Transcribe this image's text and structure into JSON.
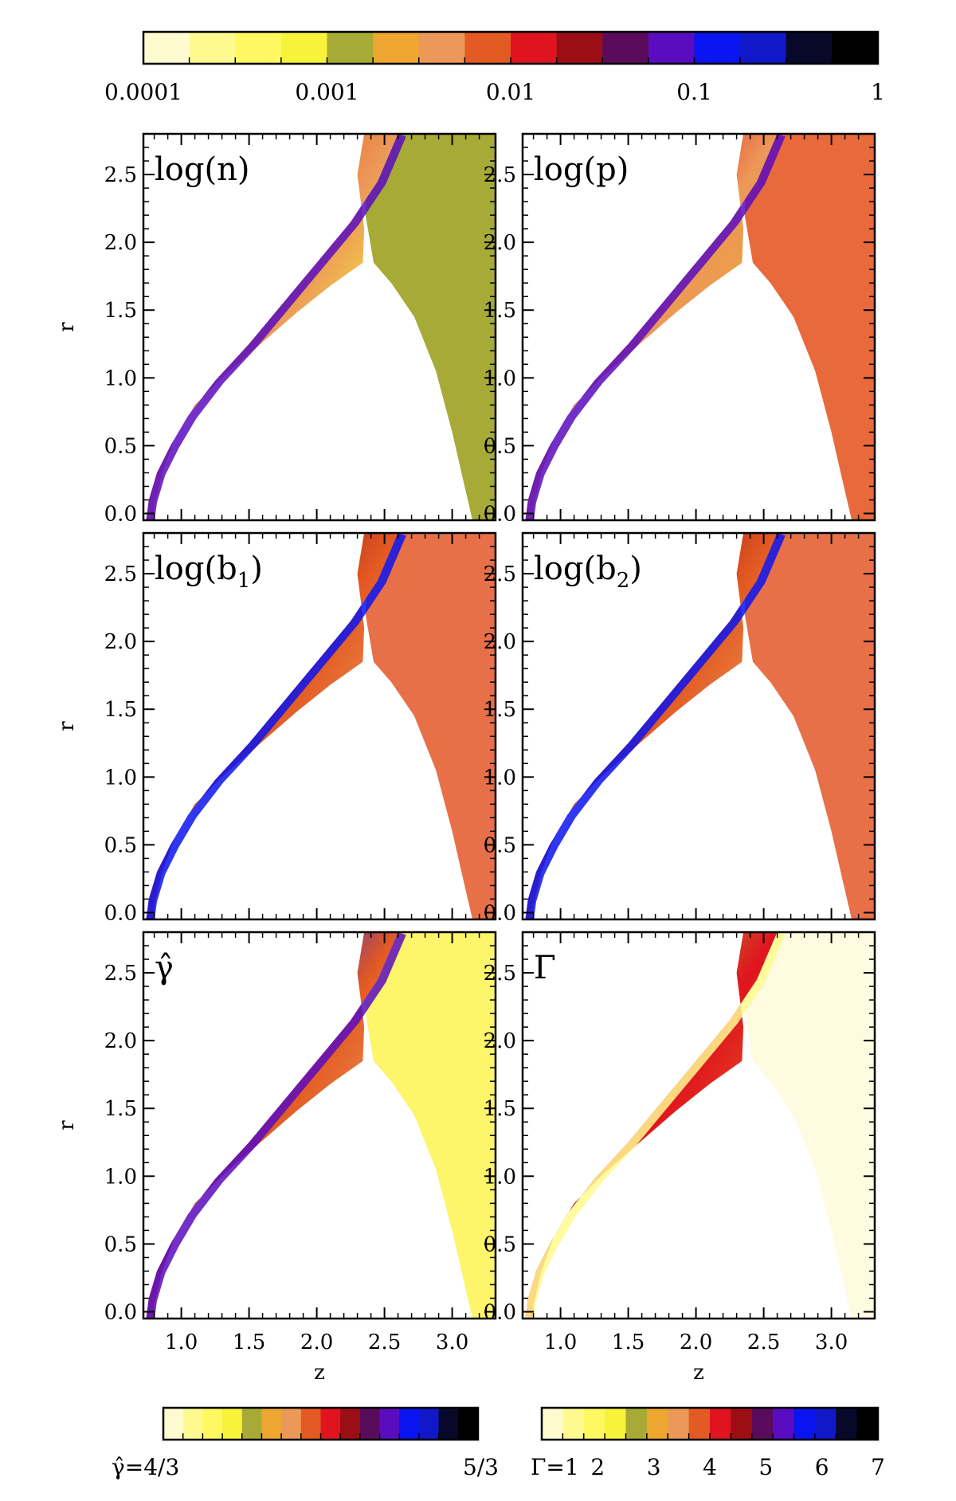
{
  "chart_data": {
    "type": "heatmap",
    "description_units": "2D simulation maps in (z, r) plane, six panels sharing axes",
    "colorbars": {
      "top": {
        "name": "shared log-scale colorbar",
        "scale": "log",
        "range": [
          0.0001,
          1
        ],
        "tick_labels": [
          "0.0001",
          "0.001",
          "0.01",
          "0.1",
          "1"
        ],
        "colors": [
          "#fffbd0",
          "#fffa90",
          "#fff860",
          "#f8f23a",
          "#a8aa38",
          "#eda630",
          "#ec9858",
          "#e35a22",
          "#e0141e",
          "#9a0e14",
          "#5a0c5c",
          "#5a0cc0",
          "#0a14f0",
          "#1018c8",
          "#08082a",
          "#000000"
        ]
      },
      "gamma": {
        "name": "adiabatic index colorbar",
        "label_left": "γ̂=4/3",
        "label_right": "5/3",
        "range_text": [
          "4/3",
          "5/3"
        ],
        "colors": [
          "#fffbd0",
          "#fffa90",
          "#fff860",
          "#f8f23a",
          "#a8aa38",
          "#eda630",
          "#ec9858",
          "#e35a22",
          "#e0141e",
          "#9a0e14",
          "#5a0c5c",
          "#5a0cc0",
          "#0a14f0",
          "#1018c8",
          "#08082a",
          "#000000"
        ]
      },
      "lorentz": {
        "name": "Lorentz factor colorbar",
        "label_prefix": "Γ=1",
        "tick_labels": [
          "2",
          "3",
          "4",
          "5",
          "6",
          "7"
        ],
        "range": [
          1,
          7
        ],
        "colors": [
          "#fffbd0",
          "#fffa90",
          "#fff860",
          "#f8f23a",
          "#a8aa38",
          "#eda630",
          "#ec9858",
          "#e35a22",
          "#e0141e",
          "#9a0e14",
          "#5a0c5c",
          "#5a0cc0",
          "#0a14f0",
          "#1018c8",
          "#08082a",
          "#000000"
        ]
      }
    },
    "axes": {
      "xlabel": "z",
      "ylabel": "r",
      "xlim": [
        0.72,
        3.32
      ],
      "ylim": [
        -0.05,
        2.8
      ],
      "x_ticks": [
        "1.0",
        "1.5",
        "2.0",
        "2.5",
        "3.0"
      ],
      "x_tick_values": [
        1.0,
        1.5,
        2.0,
        2.5,
        3.0
      ],
      "y_ticks": [
        "0.0",
        "0.5",
        "1.0",
        "1.5",
        "2.0",
        "2.5"
      ],
      "y_tick_values": [
        0.0,
        0.5,
        1.0,
        1.5,
        2.0,
        2.5
      ]
    },
    "panels": [
      {
        "id": "log-n",
        "label": "log(n)",
        "label_math": "log(n)",
        "post_shock_color": "#a8aa38",
        "shell_colors": [
          "#5a0cc0",
          "#e35a22",
          "#ec9858",
          "#f8f23a",
          "#a8aa38"
        ]
      },
      {
        "id": "log-p",
        "label": "log(p)",
        "label_math": "log(p)",
        "post_shock_color": "#e86a3c",
        "shell_colors": [
          "#5a0cc0",
          "#e0141e",
          "#ec9858",
          "#eda630",
          "#f8f23a"
        ]
      },
      {
        "id": "log-b1",
        "label": "log(b1)",
        "label_base": "log(b",
        "label_sub": "1",
        "label_end": ")",
        "post_shock_color": "#e87048",
        "shell_colors": [
          "#0a14f0",
          "#9a0e14",
          "#e35a22",
          "#ec9858",
          "#a8aa38"
        ]
      },
      {
        "id": "log-b2",
        "label": "log(b2)",
        "label_base": "log(b",
        "label_sub": "2",
        "label_end": ")",
        "post_shock_color": "#e87048",
        "shell_colors": [
          "#0a14f0",
          "#9a0e14",
          "#e35a22",
          "#ec9858",
          "#a8aa38"
        ]
      },
      {
        "id": "gamma-hat",
        "label": "γ̂",
        "post_shock_color": "#fdf56a",
        "shell_colors": [
          "#5a0cc0",
          "#0a14f0",
          "#e35a22",
          "#ec9858",
          "#a8aa38"
        ]
      },
      {
        "id": "lorentz",
        "label": "Γ",
        "post_shock_color": "#fffbe0",
        "shell_colors": [
          "#fffa90",
          "#a8aa38",
          "#e0141e",
          "#e35a22",
          "#fff860"
        ]
      }
    ]
  }
}
